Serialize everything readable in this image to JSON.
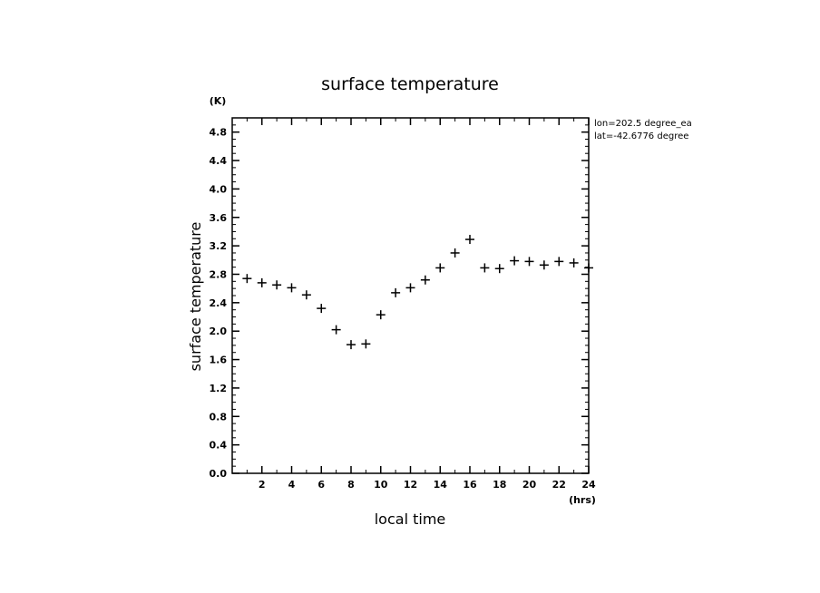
{
  "chart_data": {
    "type": "scatter",
    "title": "surface temperature",
    "xlabel": "local time",
    "ylabel": "surface temperature",
    "x_unit": "(hrs)",
    "y_unit": "(K)",
    "xlim": [
      0,
      24
    ],
    "ylim": [
      0.0,
      5.0
    ],
    "x_ticks": [
      2,
      4,
      6,
      8,
      10,
      12,
      14,
      16,
      18,
      20,
      22,
      24
    ],
    "y_ticks": [
      0.0,
      0.4,
      0.8,
      1.2,
      1.6,
      2.0,
      2.4,
      2.8,
      3.2,
      3.6,
      4.0,
      4.4,
      4.8
    ],
    "y_tick_labels": [
      "0.0",
      "0.4",
      "0.8",
      "1.2",
      "1.6",
      "2.0",
      "2.4",
      "2.8",
      "3.2",
      "3.6",
      "4.0",
      "4.4",
      "4.8"
    ],
    "annotations": [
      "lon=202.5 degree_ea",
      "lat=-42.6776 degree"
    ],
    "marker": "+",
    "grid": false,
    "x": [
      1.0,
      2.0,
      3.0,
      4.0,
      5.0,
      6.0,
      7.0,
      8.0,
      9.0,
      10.0,
      11.0,
      12.0,
      13.0,
      14.0,
      15.0,
      16.0,
      17.0,
      18.0,
      19.0,
      20.0,
      21.0,
      22.0,
      23.0,
      24.0
    ],
    "y": [
      2.74,
      2.68,
      2.65,
      2.61,
      2.51,
      2.32,
      2.02,
      1.81,
      1.82,
      2.23,
      2.54,
      2.61,
      2.72,
      2.89,
      3.1,
      3.29,
      2.89,
      2.88,
      2.99,
      2.98,
      2.93,
      2.98,
      2.96,
      2.89
    ]
  }
}
